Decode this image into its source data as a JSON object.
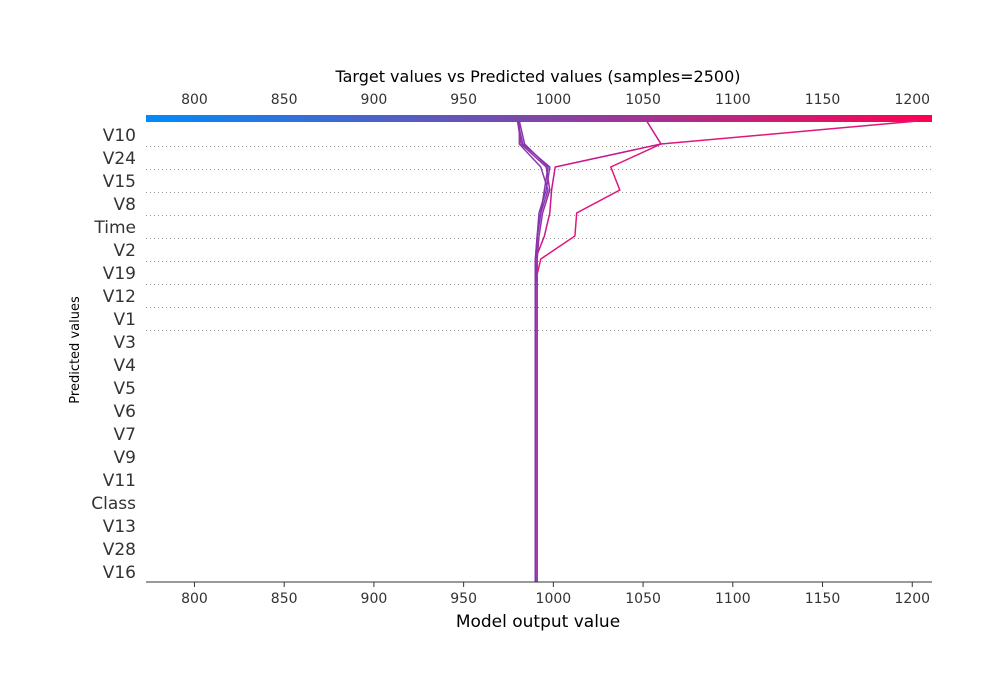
{
  "chart_data": {
    "type": "line",
    "title": "Target values vs Predicted values (samples=2500)",
    "xlabel": "Model output value",
    "ylabel": "Predicted values",
    "xlim": [
      773,
      1211
    ],
    "xticks": [
      800,
      850,
      900,
      950,
      1000,
      1050,
      1100,
      1150,
      1200
    ],
    "features_top_to_bottom": [
      "V10",
      "V24",
      "V15",
      "V8",
      "Time",
      "V2",
      "V19",
      "V12",
      "V1",
      "V3",
      "V4",
      "V5",
      "V6",
      "V7",
      "V9",
      "V11",
      "Class",
      "V13",
      "V28",
      "V16"
    ],
    "colorbar": {
      "from": "#008bfb",
      "to": "#ff0052"
    },
    "grid": "dotted-lines-at-top-features",
    "series": [
      {
        "color": "#e0177b",
        "values": [
          1203,
          1060,
          1032,
          1037,
          1013,
          1012,
          993,
          990,
          990,
          990,
          990,
          990,
          990,
          990,
          990,
          990,
          990,
          990,
          990,
          990,
          990
        ]
      },
      {
        "color": "#ca158f",
        "values": [
          1052,
          1060,
          1001,
          999,
          998,
          995,
          990,
          990,
          990,
          990,
          990,
          990,
          990,
          990,
          990,
          990,
          990,
          990,
          990,
          990,
          990
        ]
      },
      {
        "color": "#8a3bb0",
        "values": [
          981,
          981,
          993,
          997,
          993,
          991,
          991,
          990,
          990,
          990,
          990,
          990,
          990,
          990,
          990,
          990,
          990,
          990,
          990,
          990,
          990
        ]
      },
      {
        "color": "#7d3bb8",
        "values": [
          980,
          983,
          998,
          996,
          992,
          991,
          990,
          990,
          990,
          990,
          990,
          990,
          990,
          990,
          990,
          990,
          990,
          990,
          990,
          990,
          990
        ]
      },
      {
        "color": "#9631a6",
        "values": [
          980,
          982,
          996,
          998,
          994,
          992,
          991,
          991,
          991,
          991,
          991,
          991,
          991,
          991,
          991,
          991,
          991,
          991,
          991,
          991,
          991
        ]
      },
      {
        "color": "#8833ac",
        "values": [
          981,
          984,
          997,
          995,
          993,
          991,
          990,
          990,
          990,
          990,
          990,
          990,
          990,
          990,
          990,
          990,
          990,
          990,
          990,
          990,
          990
        ]
      }
    ]
  }
}
